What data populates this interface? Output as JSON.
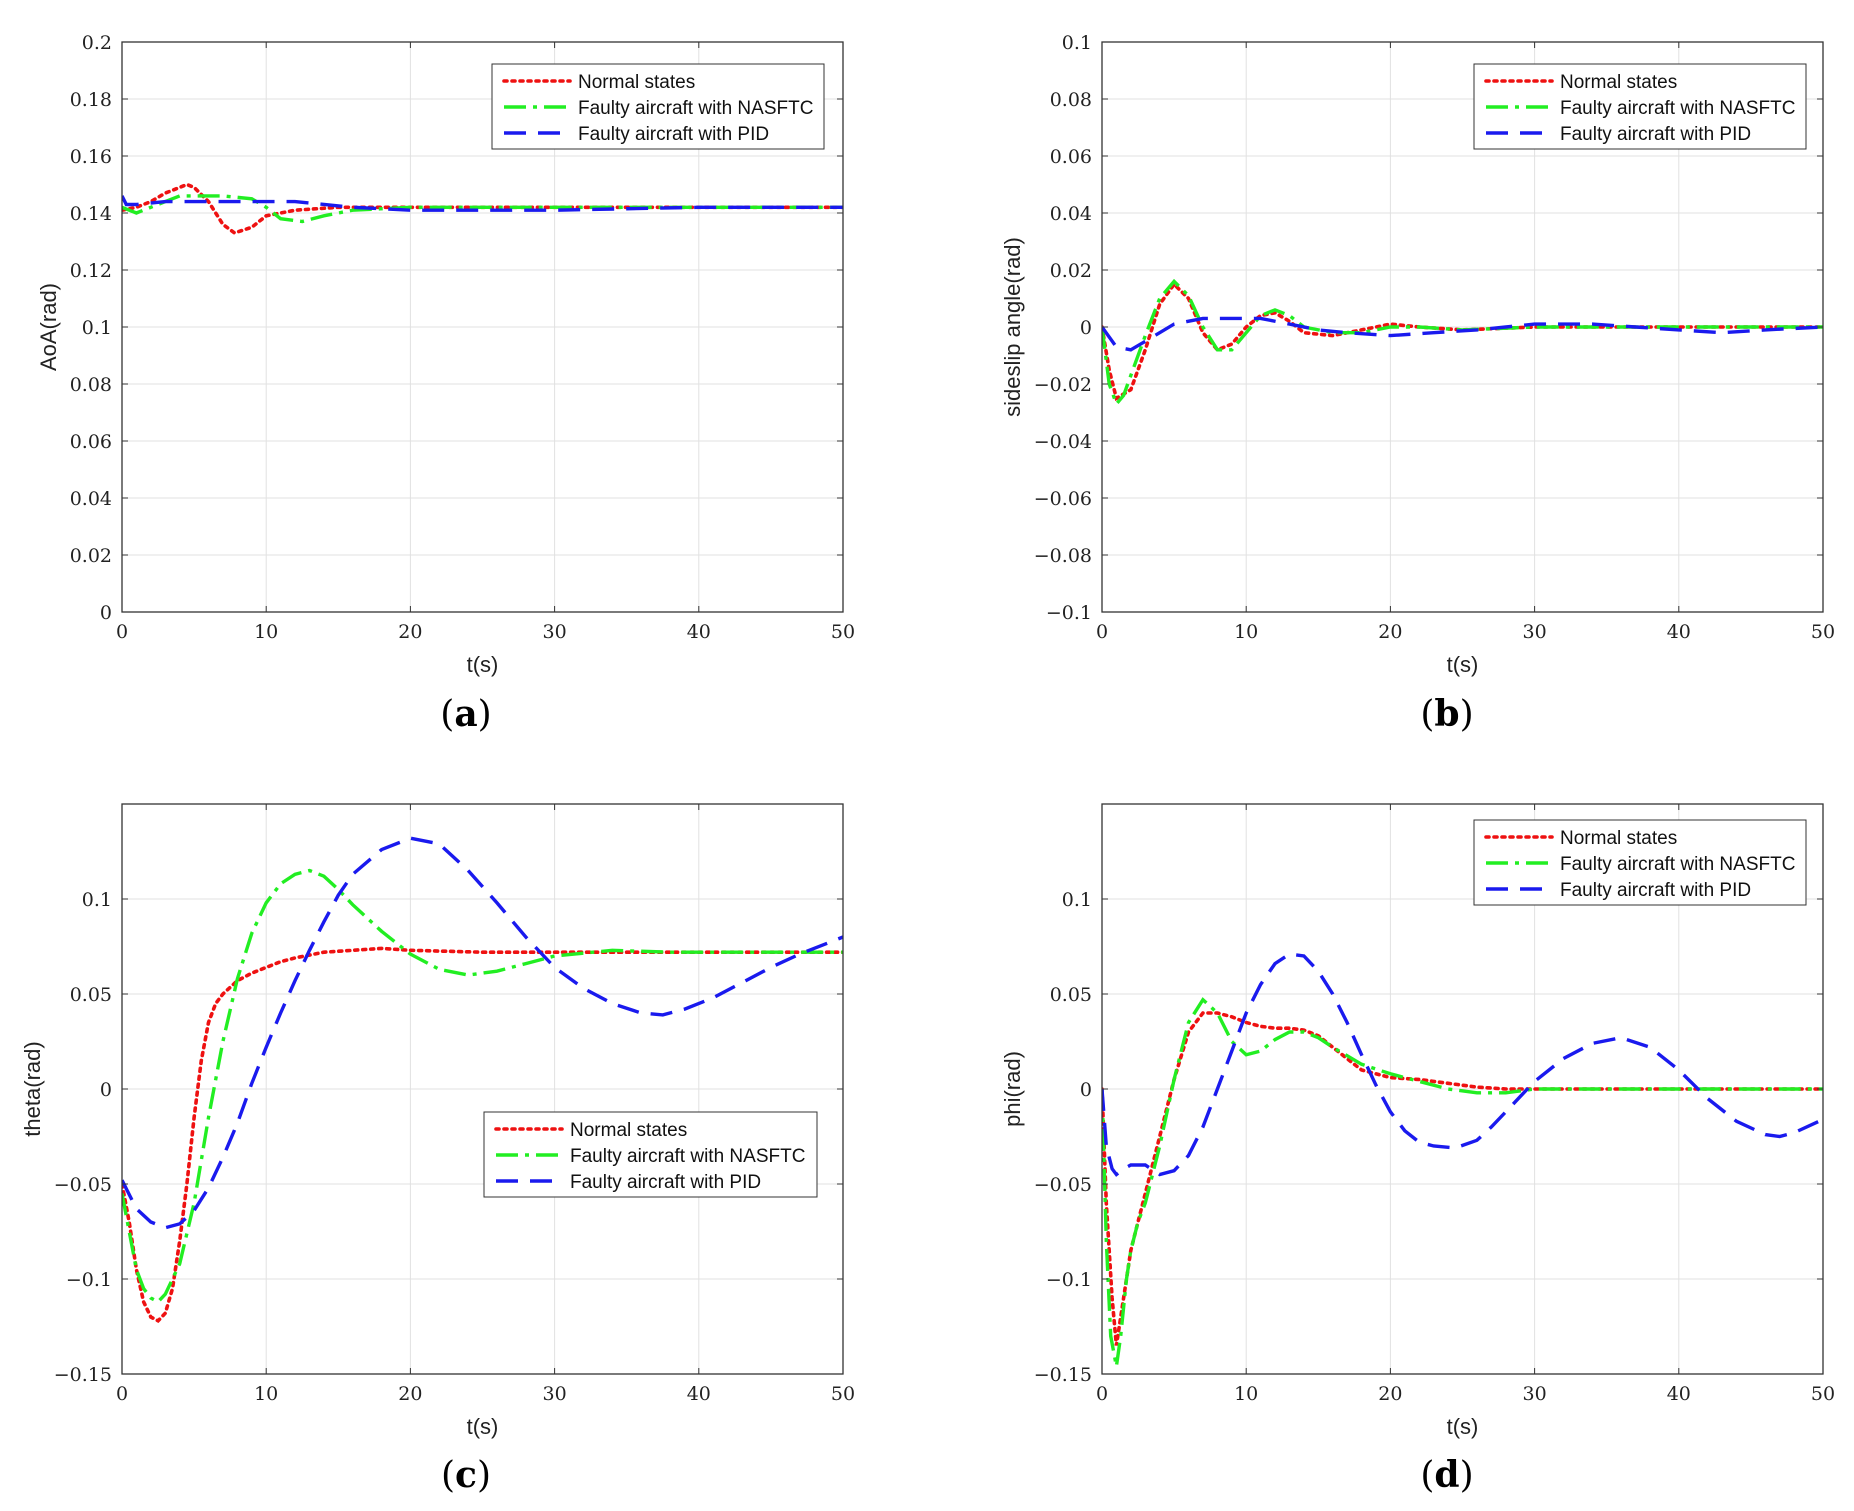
{
  "chart_data": [
    {
      "id": "a",
      "type": "line",
      "caption_letter": "a",
      "xlabel": "t(s)",
      "ylabel": "AoA(rad)",
      "xlim": [
        0,
        50
      ],
      "ylim": [
        0,
        0.2
      ],
      "xticks": [
        0,
        10,
        20,
        30,
        40,
        50
      ],
      "xtick_labels": [
        "0",
        "10",
        "20",
        "30",
        "40",
        "50"
      ],
      "yticks": [
        0,
        0.02,
        0.04,
        0.06,
        0.08,
        0.1,
        0.12,
        0.14,
        0.16,
        0.18,
        0.2
      ],
      "ytick_labels": [
        "0",
        "0.02",
        "0.04",
        "0.06",
        "0.08",
        "0.1",
        "0.12",
        "0.14",
        "0.16",
        "0.18",
        "0.2"
      ],
      "grid": true,
      "legend_position": "top-right",
      "series": [
        {
          "name": "Normal states",
          "style": "dotted",
          "color": "#ee1111",
          "x": [
            0,
            1,
            2,
            3,
            4,
            4.5,
            5,
            6,
            7,
            7.8,
            9,
            10,
            12,
            15,
            20,
            30,
            50
          ],
          "y": [
            0.141,
            0.142,
            0.144,
            0.147,
            0.149,
            0.15,
            0.149,
            0.144,
            0.136,
            0.133,
            0.135,
            0.139,
            0.141,
            0.142,
            0.142,
            0.142,
            0.142
          ]
        },
        {
          "name": "Faulty aircraft with NASFTC",
          "style": "dashdot",
          "color": "#22ee22",
          "x": [
            0,
            1,
            2,
            3,
            4,
            5,
            7,
            9,
            10,
            11,
            12.5,
            14,
            16,
            20,
            30,
            50
          ],
          "y": [
            0.142,
            0.14,
            0.142,
            0.144,
            0.146,
            0.146,
            0.146,
            0.145,
            0.142,
            0.138,
            0.137,
            0.139,
            0.141,
            0.142,
            0.142,
            0.142
          ]
        },
        {
          "name": "Faulty aircraft with PID",
          "style": "dashed",
          "color": "#1a1aee",
          "x": [
            0,
            0.3,
            1,
            3,
            5,
            8,
            12,
            16,
            20,
            25,
            30,
            40,
            50
          ],
          "y": [
            0.146,
            0.143,
            0.143,
            0.144,
            0.144,
            0.144,
            0.144,
            0.142,
            0.141,
            0.141,
            0.141,
            0.142,
            0.142
          ]
        }
      ]
    },
    {
      "id": "b",
      "type": "line",
      "caption_letter": "b",
      "xlabel": "t(s)",
      "ylabel": "sideslip angle(rad)",
      "xlim": [
        0,
        50
      ],
      "ylim": [
        -0.1,
        0.1
      ],
      "xticks": [
        0,
        10,
        20,
        30,
        40,
        50
      ],
      "xtick_labels": [
        "0",
        "10",
        "20",
        "30",
        "40",
        "50"
      ],
      "yticks": [
        -0.1,
        -0.08,
        -0.06,
        -0.04,
        -0.02,
        0,
        0.02,
        0.04,
        0.06,
        0.08,
        0.1
      ],
      "ytick_labels": [
        "−0.1",
        "−0.08",
        "−0.06",
        "−0.04",
        "−0.02",
        "0",
        "0.02",
        "0.04",
        "0.06",
        "0.08",
        "0.1"
      ],
      "grid": true,
      "legend_position": "top-right",
      "series": [
        {
          "name": "Normal states",
          "style": "dotted",
          "color": "#ee1111",
          "x": [
            0,
            0.5,
            1,
            2,
            3,
            4,
            5,
            6,
            7,
            8,
            9,
            10,
            11,
            12,
            13,
            14,
            16,
            18,
            20,
            22,
            25,
            30,
            35,
            40,
            50
          ],
          "y": [
            0,
            -0.015,
            -0.025,
            -0.022,
            -0.008,
            0.008,
            0.015,
            0.01,
            -0.002,
            -0.008,
            -0.006,
            0.0,
            0.004,
            0.005,
            0.002,
            -0.002,
            -0.003,
            -0.001,
            0.001,
            0.0,
            -0.001,
            0.0,
            0.0,
            0.0,
            0
          ]
        },
        {
          "name": "Faulty aircraft with NASFTC",
          "style": "dashdot",
          "color": "#22ee22",
          "x": [
            0,
            0.5,
            1,
            1.5,
            2,
            3,
            4,
            5,
            6,
            7,
            8,
            9,
            10,
            11,
            12,
            13,
            14,
            16,
            18,
            20,
            22,
            25,
            30,
            35,
            40,
            50
          ],
          "y": [
            0,
            -0.02,
            -0.027,
            -0.024,
            -0.017,
            -0.003,
            0.01,
            0.016,
            0.011,
            0.0,
            -0.008,
            -0.008,
            -0.002,
            0.004,
            0.006,
            0.004,
            0.0,
            -0.002,
            -0.002,
            0.0,
            0.0,
            -0.001,
            0.0,
            0.0,
            0.0,
            0
          ]
        },
        {
          "name": "Faulty aircraft with PID",
          "style": "dashed",
          "color": "#1a1aee",
          "x": [
            0,
            1,
            2,
            3,
            5,
            7,
            9,
            11,
            13,
            15,
            17,
            20,
            23,
            26,
            28,
            30,
            32,
            34,
            37,
            40,
            43,
            46,
            50
          ],
          "y": [
            0,
            -0.007,
            -0.008,
            -0.005,
            0.001,
            0.003,
            0.003,
            0.003,
            0.001,
            -0.001,
            -0.002,
            -0.003,
            -0.002,
            -0.001,
            0.0,
            0.001,
            0.001,
            0.001,
            0.0,
            -0.001,
            -0.002,
            -0.001,
            0.0
          ]
        }
      ]
    },
    {
      "id": "c",
      "type": "line",
      "caption_letter": "c",
      "xlabel": "t(s)",
      "ylabel": "theta(rad)",
      "xlim": [
        0,
        50
      ],
      "ylim": [
        -0.15,
        0.15
      ],
      "xticks": [
        0,
        10,
        20,
        30,
        40,
        50
      ],
      "xtick_labels": [
        "0",
        "10",
        "20",
        "30",
        "40",
        "50"
      ],
      "yticks": [
        -0.15,
        -0.1,
        -0.05,
        0,
        0.05,
        0.1
      ],
      "ytick_labels": [
        "−0.15",
        "−0.1",
        "−0.05",
        "0",
        "0.05",
        "0.1"
      ],
      "grid": true,
      "legend_position": "center-right",
      "series": [
        {
          "name": "Normal states",
          "style": "dotted",
          "color": "#ee1111",
          "x": [
            0,
            0.5,
            1,
            1.5,
            2,
            2.5,
            3,
            3.5,
            4,
            4.5,
            5,
            5.5,
            6,
            6.5,
            7,
            8,
            9,
            10,
            11,
            12,
            14,
            16,
            18,
            20,
            25,
            30,
            40,
            50
          ],
          "y": [
            -0.05,
            -0.07,
            -0.095,
            -0.112,
            -0.12,
            -0.122,
            -0.118,
            -0.105,
            -0.08,
            -0.05,
            -0.015,
            0.015,
            0.035,
            0.045,
            0.05,
            0.057,
            0.061,
            0.064,
            0.067,
            0.069,
            0.072,
            0.073,
            0.074,
            0.073,
            0.072,
            0.072,
            0.072,
            0.072
          ]
        },
        {
          "name": "Faulty aircraft with NASFTC",
          "style": "dashdot",
          "color": "#22ee22",
          "x": [
            0,
            0.5,
            1,
            1.5,
            2,
            2.5,
            3,
            4,
            5,
            6,
            7,
            8,
            9,
            10,
            11,
            12,
            13,
            14,
            15,
            16,
            18,
            20,
            22,
            24,
            26,
            28,
            30,
            34,
            38,
            42,
            46,
            50
          ],
          "y": [
            -0.055,
            -0.075,
            -0.095,
            -0.105,
            -0.11,
            -0.112,
            -0.108,
            -0.092,
            -0.06,
            -0.015,
            0.025,
            0.058,
            0.082,
            0.098,
            0.108,
            0.113,
            0.115,
            0.112,
            0.105,
            0.097,
            0.083,
            0.071,
            0.063,
            0.06,
            0.062,
            0.066,
            0.07,
            0.073,
            0.072,
            0.072,
            0.072,
            0.072
          ]
        },
        {
          "name": "Faulty aircraft with PID",
          "style": "dashed",
          "color": "#1a1aee",
          "x": [
            0,
            1,
            2,
            3,
            4,
            5,
            6,
            7,
            8,
            9,
            10,
            11,
            12,
            13,
            14,
            15,
            16,
            18,
            20,
            22,
            24,
            26,
            28,
            30,
            32,
            34,
            36,
            37.5,
            39,
            41,
            43,
            45,
            47,
            49,
            50
          ],
          "y": [
            -0.048,
            -0.063,
            -0.07,
            -0.073,
            -0.071,
            -0.064,
            -0.052,
            -0.036,
            -0.018,
            0.003,
            0.022,
            0.04,
            0.057,
            0.073,
            0.088,
            0.102,
            0.113,
            0.126,
            0.132,
            0.129,
            0.115,
            0.098,
            0.08,
            0.064,
            0.053,
            0.045,
            0.04,
            0.039,
            0.042,
            0.048,
            0.056,
            0.064,
            0.071,
            0.077,
            0.08
          ]
        }
      ]
    },
    {
      "id": "d",
      "type": "line",
      "caption_letter": "d",
      "xlabel": "t(s)",
      "ylabel": "phi(rad)",
      "xlim": [
        0,
        50
      ],
      "ylim": [
        -0.15,
        0.15
      ],
      "xticks": [
        0,
        10,
        20,
        30,
        40,
        50
      ],
      "xtick_labels": [
        "0",
        "10",
        "20",
        "30",
        "40",
        "50"
      ],
      "yticks": [
        -0.15,
        -0.1,
        -0.05,
        0,
        0.05,
        0.1
      ],
      "ytick_labels": [
        "−0.15",
        "−0.1",
        "−0.05",
        "0",
        "0.05",
        "0.1"
      ],
      "grid": true,
      "legend_position": "top-right",
      "series": [
        {
          "name": "Normal states",
          "style": "dotted",
          "color": "#ee1111",
          "x": [
            0,
            0.3,
            0.7,
            1,
            1.5,
            2,
            2.5,
            3,
            4,
            5,
            6,
            7,
            8,
            9,
            10,
            11,
            12,
            13,
            14,
            15,
            16,
            17,
            18,
            20,
            22,
            24,
            26,
            28,
            30,
            35,
            40,
            50
          ],
          "y": [
            0,
            -0.06,
            -0.11,
            -0.135,
            -0.11,
            -0.085,
            -0.07,
            -0.055,
            -0.025,
            0.005,
            0.03,
            0.04,
            0.04,
            0.038,
            0.035,
            0.033,
            0.032,
            0.032,
            0.031,
            0.028,
            0.022,
            0.016,
            0.01,
            0.006,
            0.005,
            0.003,
            0.001,
            0.0,
            0.0,
            0.0,
            0.0,
            0
          ]
        },
        {
          "name": "Faulty aircraft with NASFTC",
          "style": "dashdot",
          "color": "#22ee22",
          "x": [
            0,
            0.3,
            0.6,
            1,
            1.3,
            1.7,
            2,
            2.5,
            3,
            4,
            5,
            6,
            7,
            8,
            9,
            10,
            11,
            12,
            13,
            14,
            15,
            16,
            18,
            20,
            22,
            24,
            26,
            28,
            30,
            35,
            40,
            50
          ],
          "y": [
            0,
            -0.08,
            -0.13,
            -0.146,
            -0.13,
            -0.1,
            -0.085,
            -0.07,
            -0.06,
            -0.03,
            0.005,
            0.035,
            0.047,
            0.04,
            0.025,
            0.018,
            0.02,
            0.026,
            0.03,
            0.03,
            0.027,
            0.022,
            0.013,
            0.008,
            0.004,
            0.0,
            -0.002,
            -0.002,
            0.0,
            0.0,
            0.0,
            0
          ]
        },
        {
          "name": "Faulty aircraft with PID",
          "style": "dashed",
          "color": "#1a1aee",
          "x": [
            0,
            0.3,
            0.7,
            1,
            1.5,
            2,
            3,
            4,
            5,
            6,
            7,
            8,
            9,
            10,
            11,
            12,
            13,
            14,
            15,
            16,
            17,
            18,
            19,
            20,
            21,
            22,
            23,
            24.5,
            26,
            27,
            28,
            29,
            30,
            32,
            34,
            36,
            38,
            40,
            42,
            44,
            46,
            47,
            48,
            50
          ],
          "y": [
            0,
            -0.03,
            -0.042,
            -0.045,
            -0.042,
            -0.04,
            -0.04,
            -0.045,
            -0.043,
            -0.035,
            -0.02,
            0.0,
            0.02,
            0.04,
            0.055,
            0.066,
            0.071,
            0.07,
            0.062,
            0.05,
            0.035,
            0.018,
            0.002,
            -0.012,
            -0.022,
            -0.028,
            -0.03,
            -0.031,
            -0.027,
            -0.02,
            -0.012,
            -0.004,
            0.004,
            0.016,
            0.024,
            0.027,
            0.022,
            0.01,
            -0.005,
            -0.017,
            -0.024,
            -0.025,
            -0.023,
            -0.016
          ]
        }
      ]
    }
  ]
}
